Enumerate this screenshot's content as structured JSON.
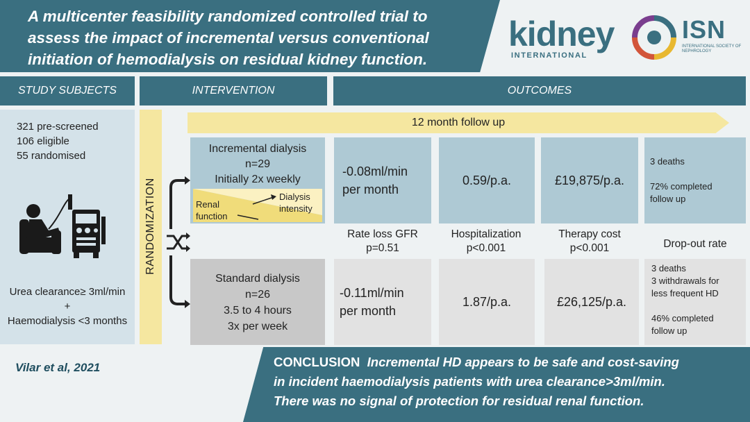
{
  "title": {
    "line1": "A multicenter feasibility randomized controlled trial to",
    "line2": "assess the impact of incremental versus conventional",
    "line3": "initiation of hemodialysis on residual kidney function."
  },
  "logos": {
    "kidney": "kidney",
    "kidney_sub": "INTERNATIONAL",
    "isn": "ISN",
    "isn_sub": "INTERNATIONAL SOCIETY OF NEPHROLOGY"
  },
  "headers": {
    "subjects": "STUDY SUBJECTS",
    "intervention": "INTERVENTION",
    "outcomes": "OUTCOMES"
  },
  "subjects": {
    "line1": "321 pre-screened",
    "line2": "106 eligible",
    "line3": "55 randomised",
    "criteria1": "Urea clearance≥ 3ml/min",
    "criteria_plus": "+",
    "criteria2": "Haemodialysis <3 months"
  },
  "randomization": "RANDOMIZATION",
  "followup": "12 month follow up",
  "incremental": {
    "title": "Incremental dialysis",
    "n": "n=29",
    "freq": "Initially 2x weekly",
    "renal1": "Renal",
    "renal2": "function",
    "dial1": "Dialysis",
    "dial2": "intensity"
  },
  "standard": {
    "title": "Standard dialysis",
    "n": "n=26",
    "hours": "3.5 to 4 hours",
    "freq": "3x per week"
  },
  "outcomes": {
    "gfr": {
      "label": "Rate loss GFR",
      "p": "p=0.51",
      "incr1": "-0.08ml/min",
      "incr2": "per month",
      "std1": "-0.11ml/min",
      "std2": "per month"
    },
    "hosp": {
      "label": "Hospitalization",
      "p": "p<0.001",
      "incr": "0.59/p.a.",
      "std": "1.87/p.a."
    },
    "cost": {
      "label": "Therapy cost",
      "p": "p<0.001",
      "incr": "£19,875/p.a.",
      "std": "£26,125/p.a."
    },
    "dropout": {
      "label": "Drop-out rate",
      "incr1": "3 deaths",
      "incr2": "72% completed",
      "incr3": "follow up",
      "std1": "3 deaths",
      "std2": "3 withdrawals for",
      "std3": "less frequent HD",
      "std4": "46% completed",
      "std5": "follow up"
    }
  },
  "citation": "Vilar et al, 2021",
  "conclusion": {
    "lead": "CONCLUSION",
    "text1": "Incremental HD appears to be safe and cost-saving",
    "text2": "in incident haemodialysis patients with urea clearance>3ml/min.",
    "text3": "There was no signal of protection for residual renal function."
  }
}
